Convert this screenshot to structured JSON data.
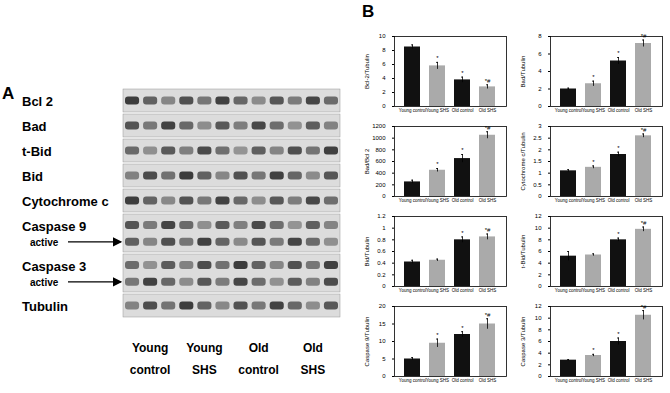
{
  "panel_a": {
    "label": "A",
    "rows": [
      {
        "label": "Bcl 2"
      },
      {
        "label": "Bad"
      },
      {
        "label": "t-Bid"
      },
      {
        "label": "Bid"
      },
      {
        "label": "Cytochrome c"
      },
      {
        "label": "Caspase 9",
        "sub": "active"
      },
      {
        "label": "Caspase 3",
        "sub": "active"
      },
      {
        "label": "Tubulin"
      }
    ],
    "groups": [
      [
        "Young",
        "control"
      ],
      [
        "Young",
        "SHS"
      ],
      [
        "Old",
        "control"
      ],
      [
        "Old",
        "SHS"
      ]
    ]
  },
  "panel_b_label": "B",
  "chart_data": [
    {
      "type": "bar",
      "ylabel": "Bcl-2/Tubulin",
      "categories": [
        "Young control",
        "Young SHS",
        "Old control",
        "Old SHS"
      ],
      "values": [
        8.5,
        5.8,
        3.8,
        2.8
      ],
      "errors": [
        0.3,
        0.5,
        0.4,
        0.3
      ],
      "annotations": [
        null,
        "*",
        "*",
        "*#"
      ],
      "colors": [
        "#111111",
        "#aaaaaa",
        "#111111",
        "#aaaaaa"
      ],
      "ylim": [
        0,
        10
      ],
      "yticks": [
        0,
        2,
        4,
        6,
        8,
        10
      ]
    },
    {
      "type": "bar",
      "ylabel": "Bad/Tubulin",
      "categories": [
        "Young control",
        "Young SHS",
        "Old control",
        "Old SHS"
      ],
      "values": [
        2.0,
        2.6,
        5.2,
        7.2
      ],
      "errors": [
        0.1,
        0.3,
        0.4,
        0.4
      ],
      "annotations": [
        null,
        "*",
        "*",
        "*#"
      ],
      "colors": [
        "#111111",
        "#aaaaaa",
        "#111111",
        "#aaaaaa"
      ],
      "ylim": [
        0,
        8
      ],
      "yticks": [
        0,
        2,
        4,
        6,
        8
      ]
    },
    {
      "type": "bar",
      "ylabel": "Bad/Bcl 2",
      "categories": [
        "Young control",
        "Young SHS",
        "Old control",
        "Old SHS"
      ],
      "values": [
        250,
        450,
        650,
        1050
      ],
      "errors": [
        30,
        30,
        70,
        60
      ],
      "annotations": [
        null,
        "*",
        "*",
        "*#"
      ],
      "colors": [
        "#111111",
        "#aaaaaa",
        "#111111",
        "#aaaaaa"
      ],
      "ylim": [
        0,
        1200
      ],
      "yticks": [
        0,
        200,
        400,
        600,
        800,
        1000,
        1200
      ]
    },
    {
      "type": "bar",
      "ylabel": "Cytochrome c/Tubulin",
      "categories": [
        "Young control",
        "Young SHS",
        "Old control",
        "Old SHS"
      ],
      "values": [
        1.1,
        1.25,
        1.8,
        2.6
      ],
      "errors": [
        0.05,
        0.06,
        0.1,
        0.08
      ],
      "annotations": [
        null,
        "*",
        "*",
        "*#"
      ],
      "colors": [
        "#111111",
        "#aaaaaa",
        "#111111",
        "#aaaaaa"
      ],
      "ylim": [
        0,
        3
      ],
      "yticks": [
        0,
        0.5,
        1,
        1.5,
        2,
        2.5,
        3
      ]
    },
    {
      "type": "bar",
      "ylabel": "Bid/Tubulin",
      "categories": [
        "Young control",
        "Young SHS",
        "Old control",
        "Old SHS"
      ],
      "values": [
        0.42,
        0.45,
        0.8,
        0.85
      ],
      "errors": [
        0.03,
        0.02,
        0.05,
        0.05
      ],
      "annotations": [
        null,
        null,
        "*",
        "*#"
      ],
      "colors": [
        "#111111",
        "#aaaaaa",
        "#111111",
        "#aaaaaa"
      ],
      "ylim": [
        0,
        1.2
      ],
      "yticks": [
        0,
        0.2,
        0.4,
        0.6,
        0.8,
        1,
        1.2
      ]
    },
    {
      "type": "bar",
      "ylabel": "t-Bid/Tubulin",
      "categories": [
        "Young control",
        "Young SHS",
        "Old control",
        "Old SHS"
      ],
      "values": [
        5.2,
        5.4,
        8.0,
        9.8
      ],
      "errors": [
        0.8,
        0.2,
        0.3,
        0.4
      ],
      "annotations": [
        null,
        null,
        "*",
        "*#"
      ],
      "colors": [
        "#111111",
        "#aaaaaa",
        "#111111",
        "#aaaaaa"
      ],
      "ylim": [
        0,
        12
      ],
      "yticks": [
        0,
        2,
        4,
        6,
        8,
        10,
        12
      ]
    },
    {
      "type": "bar",
      "ylabel": "Caspase 9/Tubulin",
      "categories": [
        "Young control",
        "Young SHS",
        "Old control",
        "Old SHS"
      ],
      "values": [
        5,
        9.5,
        12,
        15
      ],
      "errors": [
        0.4,
        1.2,
        0.8,
        1.5
      ],
      "annotations": [
        null,
        "*",
        "*",
        "*#"
      ],
      "colors": [
        "#111111",
        "#aaaaaa",
        "#111111",
        "#aaaaaa"
      ],
      "ylim": [
        0,
        20
      ],
      "yticks": [
        0,
        5,
        10,
        15,
        20
      ]
    },
    {
      "type": "bar",
      "ylabel": "Caspase 3/Tubulin",
      "categories": [
        "Young control",
        "Young SHS",
        "Old control",
        "Old SHS"
      ],
      "values": [
        2.8,
        3.6,
        6.0,
        10.5
      ],
      "errors": [
        0.1,
        0.2,
        0.6,
        0.8
      ],
      "annotations": [
        null,
        "*",
        "*",
        "*#"
      ],
      "colors": [
        "#111111",
        "#aaaaaa",
        "#111111",
        "#aaaaaa"
      ],
      "ylim": [
        0,
        12
      ],
      "yticks": [
        0,
        2,
        4,
        6,
        8,
        10,
        12
      ]
    }
  ]
}
